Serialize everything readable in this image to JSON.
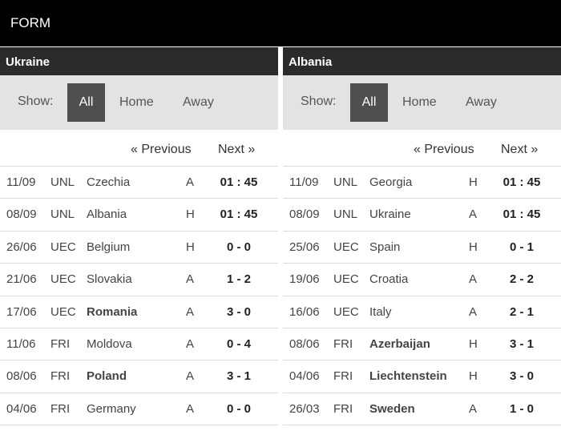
{
  "header": {
    "title": "FORM"
  },
  "teams": [
    {
      "name": "Ukraine",
      "show_label": "Show:",
      "filters": [
        "All",
        "Home",
        "Away"
      ],
      "active_filter": "All",
      "prev_label": "« Previous",
      "next_label": "Next »",
      "matches": [
        {
          "date": "11/09",
          "comp": "UNL",
          "opponent": "Czechia",
          "bold": false,
          "venue": "A",
          "score": "01 : 45"
        },
        {
          "date": "08/09",
          "comp": "UNL",
          "opponent": "Albania",
          "bold": false,
          "venue": "H",
          "score": "01 : 45"
        },
        {
          "date": "26/06",
          "comp": "UEC",
          "opponent": "Belgium",
          "bold": false,
          "venue": "H",
          "score": "0 - 0"
        },
        {
          "date": "21/06",
          "comp": "UEC",
          "opponent": "Slovakia",
          "bold": false,
          "venue": "A",
          "score": "1 - 2"
        },
        {
          "date": "17/06",
          "comp": "UEC",
          "opponent": "Romania",
          "bold": true,
          "venue": "A",
          "score": "3 - 0"
        },
        {
          "date": "11/06",
          "comp": "FRI",
          "opponent": "Moldova",
          "bold": false,
          "venue": "A",
          "score": "0 - 4"
        },
        {
          "date": "08/06",
          "comp": "FRI",
          "opponent": "Poland",
          "bold": true,
          "venue": "A",
          "score": "3 - 1"
        },
        {
          "date": "04/06",
          "comp": "FRI",
          "opponent": "Germany",
          "bold": false,
          "venue": "A",
          "score": "0 - 0"
        }
      ]
    },
    {
      "name": "Albania",
      "show_label": "Show:",
      "filters": [
        "All",
        "Home",
        "Away"
      ],
      "active_filter": "All",
      "prev_label": "« Previous",
      "next_label": "Next »",
      "matches": [
        {
          "date": "11/09",
          "comp": "UNL",
          "opponent": "Georgia",
          "bold": false,
          "venue": "H",
          "score": "01 : 45"
        },
        {
          "date": "08/09",
          "comp": "UNL",
          "opponent": "Ukraine",
          "bold": false,
          "venue": "A",
          "score": "01 : 45"
        },
        {
          "date": "25/06",
          "comp": "UEC",
          "opponent": "Spain",
          "bold": false,
          "venue": "H",
          "score": "0 - 1"
        },
        {
          "date": "19/06",
          "comp": "UEC",
          "opponent": "Croatia",
          "bold": false,
          "venue": "A",
          "score": "2 - 2"
        },
        {
          "date": "16/06",
          "comp": "UEC",
          "opponent": "Italy",
          "bold": false,
          "venue": "A",
          "score": "2 - 1"
        },
        {
          "date": "08/06",
          "comp": "FRI",
          "opponent": "Azerbaijan",
          "bold": true,
          "venue": "H",
          "score": "3 - 1"
        },
        {
          "date": "04/06",
          "comp": "FRI",
          "opponent": "Liechtenstein",
          "bold": true,
          "venue": "H",
          "score": "3 - 0"
        },
        {
          "date": "26/03",
          "comp": "FRI",
          "opponent": "Sweden",
          "bold": true,
          "venue": "A",
          "score": "1 - 0"
        }
      ]
    }
  ]
}
